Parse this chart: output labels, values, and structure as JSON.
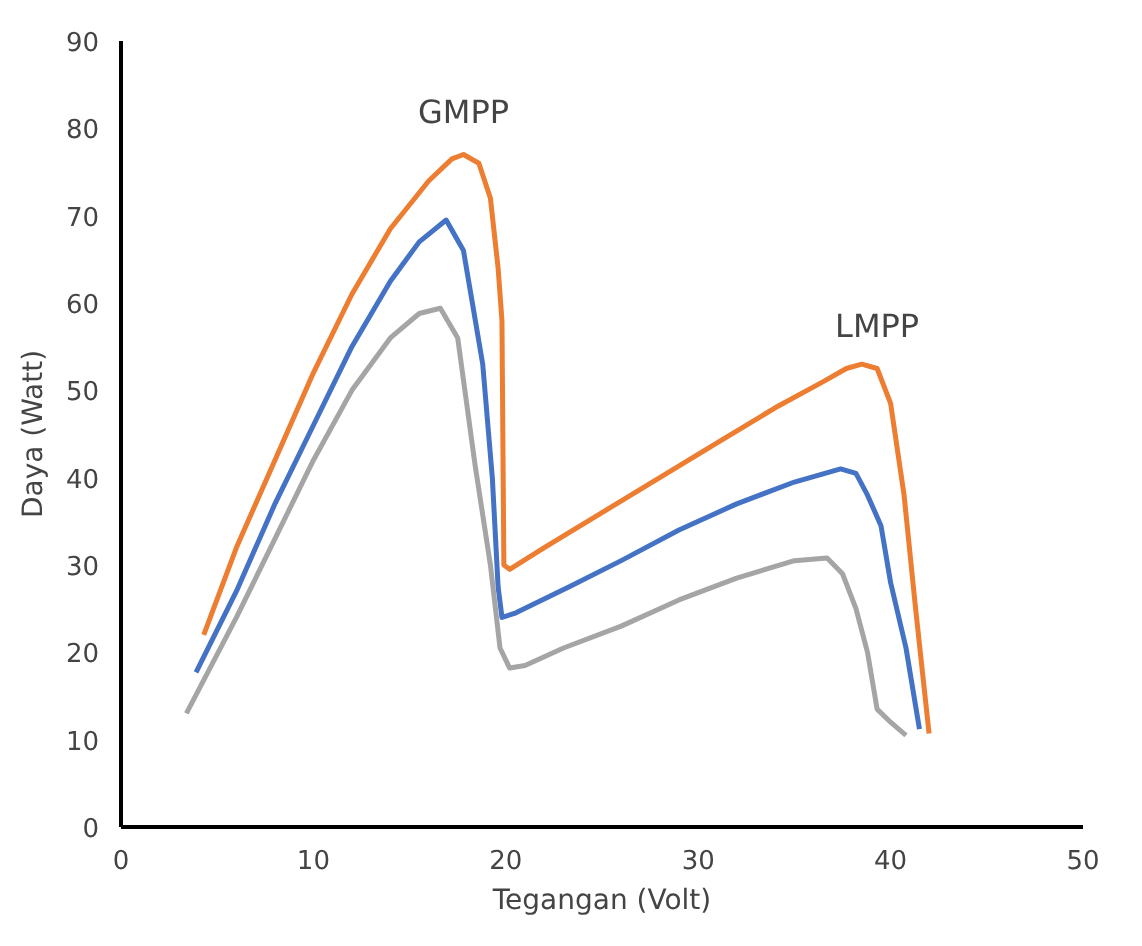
{
  "chart_data": {
    "type": "line",
    "xlabel": "Tegangan (Volt)",
    "ylabel": "Daya (Watt)",
    "xlim": [
      0,
      50
    ],
    "ylim": [
      0,
      90
    ],
    "xticks": [
      0,
      10,
      20,
      30,
      40,
      50
    ],
    "yticks": [
      0,
      10,
      20,
      30,
      40,
      50,
      60,
      70,
      80,
      90
    ],
    "grid": false,
    "line_style": "solid",
    "marker": "none",
    "series": [
      {
        "color": "#ed7d31",
        "x": [
          4.3,
          6,
          8,
          10,
          12,
          14,
          16,
          17.2,
          17.8,
          18.6,
          19.2,
          19.6,
          19.8,
          19.9,
          20.2,
          22,
          25,
          28,
          31,
          34,
          36.5,
          37.7,
          38.5,
          39.3,
          40,
          40.7,
          41.3,
          42
        ],
        "values": [
          22,
          32,
          42,
          52,
          61,
          68.5,
          74,
          76.5,
          77,
          76,
          72,
          64,
          58,
          30,
          29.5,
          32,
          36,
          40,
          44,
          48,
          51,
          52.5,
          53,
          52.5,
          48.5,
          38,
          25,
          10.7
        ]
      },
      {
        "color": "#4472c4",
        "x": [
          3.9,
          6,
          8,
          10,
          12,
          14,
          15.5,
          16.9,
          17.8,
          18.8,
          19.3,
          19.6,
          19.8,
          20.5,
          23.3,
          26,
          29,
          32,
          35,
          37.4,
          38.2,
          38.8,
          39.5,
          40,
          40.8,
          41.5
        ],
        "values": [
          17.7,
          27,
          37,
          46,
          55,
          62.5,
          67,
          69.5,
          66,
          53,
          40,
          27.5,
          24,
          24.5,
          27.5,
          30.5,
          34,
          37,
          39.5,
          41,
          40.5,
          38,
          34.5,
          28,
          20.5,
          11.2
        ]
      },
      {
        "color": "#a5a5a5",
        "x": [
          3.4,
          6,
          8,
          10,
          12,
          14,
          15.5,
          16.6,
          17.5,
          18.4,
          19.2,
          19.7,
          20.2,
          21,
          23,
          26,
          29,
          32,
          35,
          36.7,
          37.5,
          38.2,
          38.8,
          39.3,
          40,
          40.8
        ],
        "values": [
          13,
          24,
          33,
          42,
          50,
          56,
          58.8,
          59.4,
          56,
          41.5,
          30,
          20.5,
          18.2,
          18.5,
          20.5,
          23,
          26,
          28.5,
          30.5,
          30.8,
          29,
          25,
          20,
          13.5,
          12,
          10.5
        ]
      }
    ],
    "annotations": [
      {
        "text": "GMPP",
        "x": 17.8,
        "y": 77
      },
      {
        "text": "LMPP",
        "x": 39.3,
        "y": 52.5
      }
    ]
  }
}
